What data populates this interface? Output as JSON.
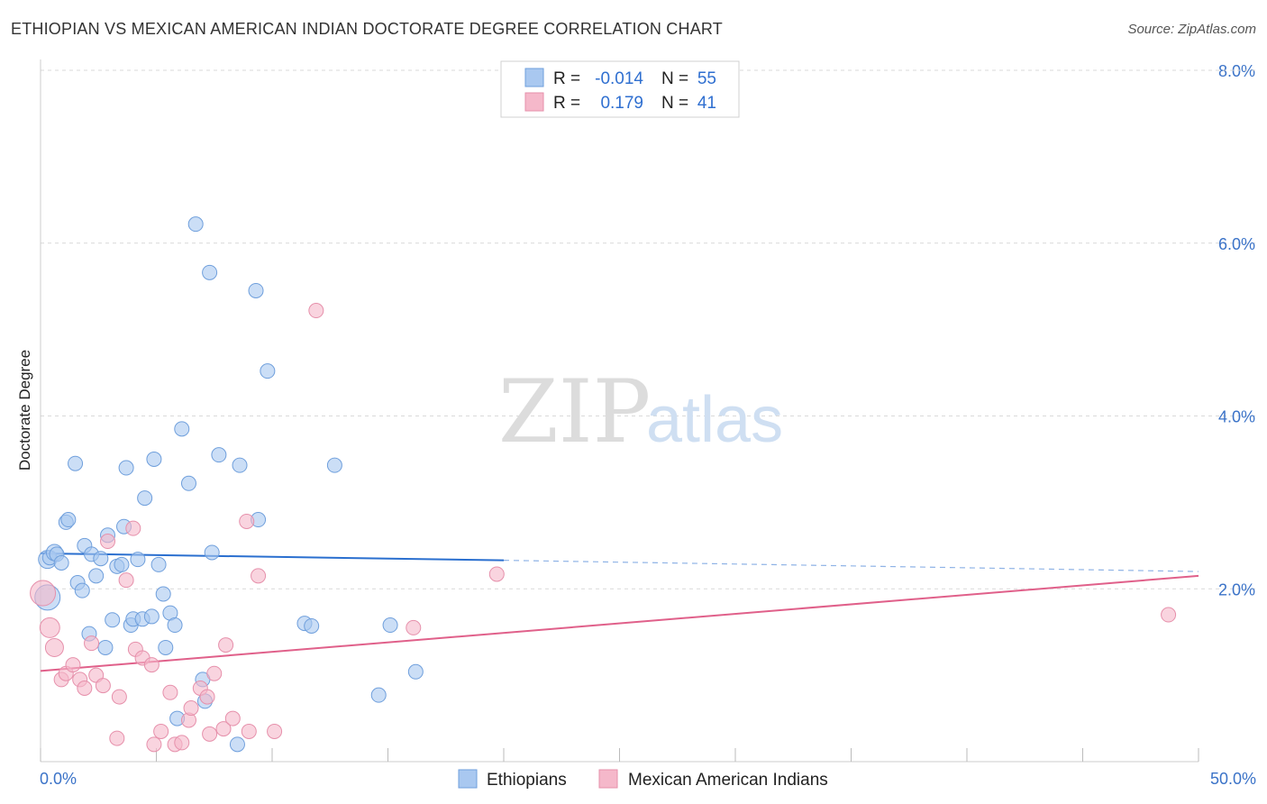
{
  "header": {
    "title": "ETHIOPIAN VS MEXICAN AMERICAN INDIAN DOCTORATE DEGREE CORRELATION CHART",
    "source": "Source: ZipAtlas.com"
  },
  "watermark": {
    "zip": "ZIP",
    "atlas": "atlas"
  },
  "legend": {
    "rows": [
      {
        "r_label": "R =",
        "r_value": "-0.014",
        "n_label": "N =",
        "n_value": "55",
        "color": "#a9c8f0"
      },
      {
        "r_label": "R =",
        "r_value": "0.179",
        "n_label": "N =",
        "n_value": "41",
        "color": "#f5b8ca"
      }
    ]
  },
  "bottom_legend": {
    "items": [
      {
        "label": "Ethiopians",
        "color": "#a9c8f0"
      },
      {
        "label": "Mexican American Indians",
        "color": "#f5b8ca"
      }
    ]
  },
  "colors": {
    "blue_fill": "#a9c8f0",
    "blue_stroke": "#6f9fdc",
    "blue_line": "#2a6fcf",
    "pink_fill": "#f5b8ca",
    "pink_stroke": "#e690ab",
    "pink_line": "#e0608a",
    "grid": "#d9d9d9",
    "tick_text": "#3b73c8"
  },
  "chart_data": {
    "type": "scatter",
    "title": "ETHIOPIAN VS MEXICAN AMERICAN INDIAN DOCTORATE DEGREE CORRELATION CHART",
    "xlabel": "",
    "ylabel": "Doctorate Degree",
    "xlim": [
      0,
      50
    ],
    "ylim": [
      0,
      8.0
    ],
    "x_tick_labels": [
      "0.0%",
      "50.0%"
    ],
    "y_ticks": [
      2.0,
      4.0,
      6.0,
      8.0
    ],
    "y_tick_labels": [
      "2.0%",
      "4.0%",
      "6.0%",
      "8.0%"
    ],
    "grid": true,
    "legend_position": "top-center",
    "series": [
      {
        "name": "Ethiopians",
        "r": -0.014,
        "n": 55,
        "trend": {
          "x0": 0,
          "y0": 2.41,
          "x1": 20,
          "y1": 2.33,
          "x_dash_end": 50,
          "y_dash_end": 2.2
        },
        "points": [
          {
            "x": 0.3,
            "y": 1.9,
            "s": 14
          },
          {
            "x": 0.3,
            "y": 2.34,
            "s": 10
          },
          {
            "x": 0.4,
            "y": 2.36,
            "s": 8
          },
          {
            "x": 0.6,
            "y": 2.42,
            "s": 9
          },
          {
            "x": 0.7,
            "y": 2.4,
            "s": 8
          },
          {
            "x": 0.9,
            "y": 2.3,
            "s": 8
          },
          {
            "x": 1.1,
            "y": 2.77,
            "s": 8
          },
          {
            "x": 1.2,
            "y": 2.8,
            "s": 8
          },
          {
            "x": 1.5,
            "y": 3.45,
            "s": 8
          },
          {
            "x": 1.6,
            "y": 2.07,
            "s": 8
          },
          {
            "x": 1.8,
            "y": 1.98,
            "s": 8
          },
          {
            "x": 1.9,
            "y": 2.5,
            "s": 8
          },
          {
            "x": 2.1,
            "y": 1.48,
            "s": 8
          },
          {
            "x": 2.2,
            "y": 2.4,
            "s": 8
          },
          {
            "x": 2.4,
            "y": 2.15,
            "s": 8
          },
          {
            "x": 2.6,
            "y": 2.35,
            "s": 8
          },
          {
            "x": 2.8,
            "y": 1.32,
            "s": 8
          },
          {
            "x": 2.9,
            "y": 2.62,
            "s": 8
          },
          {
            "x": 3.1,
            "y": 1.64,
            "s": 8
          },
          {
            "x": 3.3,
            "y": 2.26,
            "s": 8
          },
          {
            "x": 3.5,
            "y": 2.28,
            "s": 8
          },
          {
            "x": 3.6,
            "y": 2.72,
            "s": 8
          },
          {
            "x": 3.7,
            "y": 3.4,
            "s": 8
          },
          {
            "x": 3.9,
            "y": 1.58,
            "s": 8
          },
          {
            "x": 4.0,
            "y": 1.65,
            "s": 8
          },
          {
            "x": 4.2,
            "y": 2.34,
            "s": 8
          },
          {
            "x": 4.4,
            "y": 1.65,
            "s": 8
          },
          {
            "x": 4.5,
            "y": 3.05,
            "s": 8
          },
          {
            "x": 4.8,
            "y": 1.68,
            "s": 8
          },
          {
            "x": 4.9,
            "y": 3.5,
            "s": 8
          },
          {
            "x": 5.1,
            "y": 2.28,
            "s": 8
          },
          {
            "x": 5.3,
            "y": 1.94,
            "s": 8
          },
          {
            "x": 5.4,
            "y": 1.32,
            "s": 8
          },
          {
            "x": 5.6,
            "y": 1.72,
            "s": 8
          },
          {
            "x": 5.8,
            "y": 1.58,
            "s": 8
          },
          {
            "x": 5.9,
            "y": 0.5,
            "s": 8
          },
          {
            "x": 6.1,
            "y": 3.85,
            "s": 8
          },
          {
            "x": 6.4,
            "y": 3.22,
            "s": 8
          },
          {
            "x": 6.7,
            "y": 6.22,
            "s": 8
          },
          {
            "x": 7.0,
            "y": 0.95,
            "s": 8
          },
          {
            "x": 7.1,
            "y": 0.7,
            "s": 8
          },
          {
            "x": 7.3,
            "y": 5.66,
            "s": 8
          },
          {
            "x": 7.4,
            "y": 2.42,
            "s": 8
          },
          {
            "x": 7.7,
            "y": 3.55,
            "s": 8
          },
          {
            "x": 8.5,
            "y": 0.2,
            "s": 8
          },
          {
            "x": 8.6,
            "y": 3.43,
            "s": 8
          },
          {
            "x": 9.3,
            "y": 5.45,
            "s": 8
          },
          {
            "x": 9.4,
            "y": 2.8,
            "s": 8
          },
          {
            "x": 9.8,
            "y": 4.52,
            "s": 8
          },
          {
            "x": 11.4,
            "y": 1.6,
            "s": 8
          },
          {
            "x": 11.7,
            "y": 1.57,
            "s": 8
          },
          {
            "x": 12.7,
            "y": 3.43,
            "s": 8
          },
          {
            "x": 14.6,
            "y": 0.77,
            "s": 8
          },
          {
            "x": 15.1,
            "y": 1.58,
            "s": 8
          },
          {
            "x": 16.2,
            "y": 1.04,
            "s": 8
          }
        ]
      },
      {
        "name": "Mexican American Indians",
        "r": 0.179,
        "n": 41,
        "trend": {
          "x0": 0,
          "y0": 1.05,
          "x1": 50,
          "y1": 2.15
        },
        "points": [
          {
            "x": 0.1,
            "y": 1.95,
            "s": 14
          },
          {
            "x": 0.4,
            "y": 1.55,
            "s": 11
          },
          {
            "x": 0.6,
            "y": 1.32,
            "s": 10
          },
          {
            "x": 0.9,
            "y": 0.95,
            "s": 8
          },
          {
            "x": 1.1,
            "y": 1.02,
            "s": 8
          },
          {
            "x": 1.4,
            "y": 1.12,
            "s": 8
          },
          {
            "x": 1.7,
            "y": 0.95,
            "s": 8
          },
          {
            "x": 1.9,
            "y": 0.85,
            "s": 8
          },
          {
            "x": 2.2,
            "y": 1.37,
            "s": 8
          },
          {
            "x": 2.4,
            "y": 1.0,
            "s": 8
          },
          {
            "x": 2.7,
            "y": 0.88,
            "s": 8
          },
          {
            "x": 2.9,
            "y": 2.55,
            "s": 8
          },
          {
            "x": 3.3,
            "y": 0.27,
            "s": 8
          },
          {
            "x": 3.4,
            "y": 0.75,
            "s": 8
          },
          {
            "x": 3.7,
            "y": 2.1,
            "s": 8
          },
          {
            "x": 4.0,
            "y": 2.7,
            "s": 8
          },
          {
            "x": 4.1,
            "y": 1.3,
            "s": 8
          },
          {
            "x": 4.4,
            "y": 1.2,
            "s": 8
          },
          {
            "x": 4.8,
            "y": 1.12,
            "s": 8
          },
          {
            "x": 4.9,
            "y": 0.2,
            "s": 8
          },
          {
            "x": 5.2,
            "y": 0.35,
            "s": 8
          },
          {
            "x": 5.6,
            "y": 0.8,
            "s": 8
          },
          {
            "x": 5.8,
            "y": 0.2,
            "s": 8
          },
          {
            "x": 6.1,
            "y": 0.22,
            "s": 8
          },
          {
            "x": 6.4,
            "y": 0.48,
            "s": 8
          },
          {
            "x": 6.5,
            "y": 0.62,
            "s": 8
          },
          {
            "x": 6.9,
            "y": 0.85,
            "s": 8
          },
          {
            "x": 7.2,
            "y": 0.75,
            "s": 8
          },
          {
            "x": 7.3,
            "y": 0.32,
            "s": 8
          },
          {
            "x": 7.5,
            "y": 1.02,
            "s": 8
          },
          {
            "x": 7.9,
            "y": 0.38,
            "s": 8
          },
          {
            "x": 8.0,
            "y": 1.35,
            "s": 8
          },
          {
            "x": 8.3,
            "y": 0.5,
            "s": 8
          },
          {
            "x": 8.9,
            "y": 2.78,
            "s": 8
          },
          {
            "x": 9.0,
            "y": 0.35,
            "s": 8
          },
          {
            "x": 9.4,
            "y": 2.15,
            "s": 8
          },
          {
            "x": 10.1,
            "y": 0.35,
            "s": 8
          },
          {
            "x": 11.9,
            "y": 5.22,
            "s": 8
          },
          {
            "x": 16.1,
            "y": 1.55,
            "s": 8
          },
          {
            "x": 19.7,
            "y": 2.17,
            "s": 8
          },
          {
            "x": 48.7,
            "y": 1.7,
            "s": 8
          }
        ]
      }
    ]
  }
}
